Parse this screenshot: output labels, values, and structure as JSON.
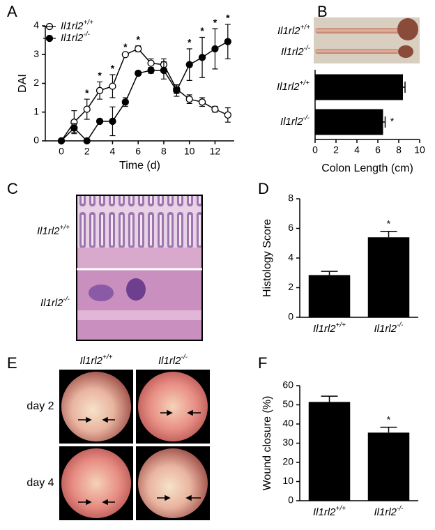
{
  "panel_labels": [
    "A",
    "B",
    "C",
    "D",
    "E",
    "F"
  ],
  "chart_data": [
    {
      "type": "line",
      "xlabel": "Time (d)",
      "ylabel": "DAI",
      "xlim": [
        -1.25,
        13.5
      ],
      "xticks": [
        0,
        2,
        4,
        6,
        8,
        10,
        12
      ],
      "ylim": [
        0,
        4
      ],
      "yticks": [
        0,
        1,
        2,
        3,
        4
      ],
      "x": [
        0,
        1,
        2,
        3,
        4,
        5,
        6,
        7,
        8,
        9,
        10,
        11,
        12,
        13
      ],
      "series": [
        {
          "name": "Il1rl2+/+",
          "color": "#000000",
          "marker": "open",
          "values": [
            0,
            0.65,
            1.1,
            1.75,
            1.9,
            3.0,
            3.2,
            2.7,
            2.65,
            1.8,
            1.45,
            1.35,
            1.1,
            0.9
          ],
          "errors": [
            0,
            0.4,
            0.35,
            0.3,
            0.4,
            0.05,
            0.1,
            0.15,
            0.2,
            0.15,
            0.15,
            0.15,
            0.1,
            0.25
          ]
        },
        {
          "name": "Il1rl2-/-",
          "color": "#000000",
          "marker": "filled",
          "values": [
            0,
            0.45,
            0,
            0.68,
            0.68,
            1.35,
            2.35,
            2.45,
            2.45,
            1.75,
            2.65,
            2.9,
            3.2,
            3.45
          ],
          "errors": [
            0,
            0.15,
            0,
            0,
            0.5,
            0.15,
            0.05,
            0.1,
            0.3,
            0.2,
            0.55,
            0.7,
            0.7,
            0.6
          ]
        }
      ],
      "annotations": [
        {
          "x": 2,
          "label": "*"
        },
        {
          "x": 3,
          "label": "*"
        },
        {
          "x": 4,
          "label": "*"
        },
        {
          "x": 5,
          "label": "*"
        },
        {
          "x": 6,
          "label": "*"
        },
        {
          "x": 10,
          "label": "*"
        },
        {
          "x": 11,
          "label": "*"
        },
        {
          "x": 12,
          "label": "*"
        },
        {
          "x": 13,
          "label": "*"
        }
      ]
    },
    {
      "type": "hbar",
      "xlabel": "Colon Length (cm)",
      "xlim": [
        0,
        10
      ],
      "xticks": [
        0,
        2,
        4,
        6,
        8,
        10
      ],
      "categories": [
        "Il1rl2+/+",
        "Il1rl2-/-"
      ],
      "values": [
        8.4,
        6.5
      ],
      "errors": [
        0.2,
        0.2
      ],
      "color": "#000000",
      "annotations": [
        {
          "category": 1,
          "label": "*"
        }
      ]
    },
    {
      "type": "bar",
      "ylabel": "Histology Score",
      "ylim": [
        0,
        8
      ],
      "yticks": [
        0,
        2,
        4,
        6,
        8
      ],
      "categories": [
        "Il1rl2+/+",
        "Il1rl2-/-"
      ],
      "values": [
        2.85,
        5.4
      ],
      "errors": [
        0.25,
        0.4
      ],
      "color": "#000000",
      "annotations": [
        {
          "category": 1,
          "label": "*"
        }
      ]
    },
    {
      "type": "bar",
      "ylabel": "Wound closure (%)",
      "ylim": [
        0,
        60
      ],
      "yticks": [
        0,
        10,
        20,
        30,
        40,
        50,
        60
      ],
      "categories": [
        "Il1rl2+/+",
        "Il1rl2-/-"
      ],
      "values": [
        51.5,
        35.5
      ],
      "errors": [
        3,
        2.8
      ],
      "color": "#000000",
      "annotations": [
        {
          "category": 1,
          "label": "*"
        }
      ]
    }
  ],
  "photo_b": {
    "rows": [
      "Il1rl2+/+",
      "Il1rl2-/-"
    ]
  },
  "histology": {
    "rows": [
      "Il1rl2+/+",
      "Il1rl2-/-"
    ]
  },
  "endoscopy": {
    "columns": [
      "Il1rl2+/+",
      "Il1rl2-/-"
    ],
    "rows": [
      "day 2",
      "day 4"
    ]
  }
}
